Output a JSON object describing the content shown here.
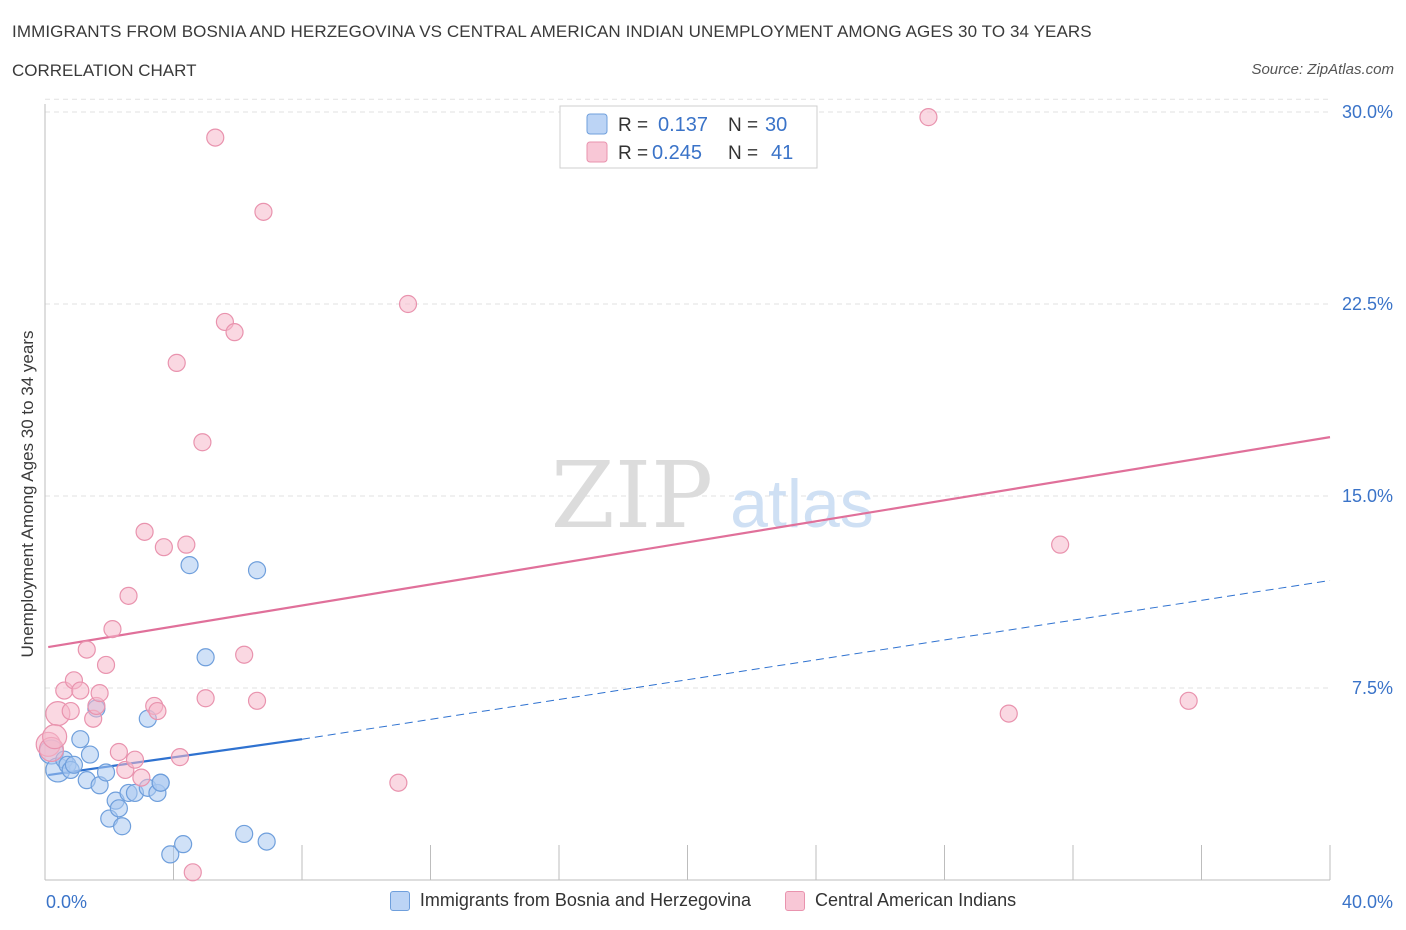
{
  "header": {
    "title": "IMMIGRANTS FROM BOSNIA AND HERZEGOVINA VS CENTRAL AMERICAN INDIAN UNEMPLOYMENT AMONG AGES 30 TO 34 YEARS",
    "subtitle": "CORRELATION CHART",
    "source": "Source: ZipAtlas.com"
  },
  "watermark": {
    "zip": "ZIP",
    "atlas": "atlas"
  },
  "legend_stats": {
    "r_label": "R =",
    "n_label": "N =",
    "rows": [
      {
        "r": "0.137",
        "n": "30"
      },
      {
        "r": "0.245",
        "n": "41"
      }
    ]
  },
  "colors": {
    "blue_fill": "#aac8f0",
    "blue_stroke": "#6f9fdc",
    "blue_line": "#2f72d0",
    "pink_fill": "#f5b8cb",
    "pink_stroke": "#e993ae",
    "pink_line": "#e0709a",
    "value_text": "#3a73c8"
  },
  "chart_data": {
    "type": "scatter",
    "title": "IMMIGRANTS FROM BOSNIA AND HERZEGOVINA VS CENTRAL AMERICAN INDIAN UNEMPLOYMENT AMONG AGES 30 TO 34 YEARS",
    "ylabel": "Unemployment Among Ages 30 to 34 years",
    "xlim": [
      0,
      40
    ],
    "ylim": [
      0,
      30.5
    ],
    "x_tick_labels": [
      "0.0%",
      "40.0%"
    ],
    "y_ticks": [
      7.5,
      15.0,
      22.5,
      30.0
    ],
    "y_tick_labels": [
      "7.5%",
      "15.0%",
      "22.5%",
      "30.0%"
    ],
    "grid": "horizontal dashed",
    "legend_placement": "top-center and bottom",
    "series": [
      {
        "name": "Immigrants from Bosnia and Herzegovina",
        "color": "blue",
        "r": 0.137,
        "n": 30,
        "trend": {
          "x0": 0.1,
          "y0": 4.1,
          "x_solid_end": 8.0,
          "y_solid_end": 5.5,
          "x1": 40.0,
          "y1": 11.7
        },
        "points": [
          [
            0.2,
            5.0
          ],
          [
            0.4,
            4.3
          ],
          [
            0.6,
            4.7
          ],
          [
            0.7,
            4.5
          ],
          [
            0.8,
            4.3
          ],
          [
            1.1,
            5.5
          ],
          [
            1.3,
            3.9
          ],
          [
            1.4,
            4.9
          ],
          [
            1.7,
            3.7
          ],
          [
            1.9,
            4.2
          ],
          [
            2.0,
            2.4
          ],
          [
            2.2,
            3.1
          ],
          [
            2.3,
            2.8
          ],
          [
            2.4,
            2.1
          ],
          [
            2.6,
            3.4
          ],
          [
            2.8,
            3.4
          ],
          [
            3.2,
            3.6
          ],
          [
            3.5,
            3.4
          ],
          [
            3.6,
            3.8
          ],
          [
            3.9,
            1.0
          ],
          [
            4.3,
            1.4
          ],
          [
            6.2,
            1.8
          ],
          [
            6.9,
            1.5
          ],
          [
            1.6,
            6.7
          ],
          [
            3.2,
            6.3
          ],
          [
            5.0,
            8.7
          ],
          [
            4.5,
            12.3
          ],
          [
            6.6,
            12.1
          ],
          [
            3.6,
            3.8
          ],
          [
            0.9,
            4.5
          ]
        ]
      },
      {
        "name": "Central American Indians",
        "color": "pink",
        "r": 0.245,
        "n": 41,
        "trend": {
          "x0": 0.1,
          "y0": 9.1,
          "x1": 40.0,
          "y1": 17.3
        },
        "points": [
          [
            0.1,
            5.3
          ],
          [
            0.2,
            5.1
          ],
          [
            0.4,
            6.5
          ],
          [
            0.6,
            7.4
          ],
          [
            0.8,
            6.6
          ],
          [
            0.9,
            7.8
          ],
          [
            1.1,
            7.4
          ],
          [
            1.3,
            9.0
          ],
          [
            1.5,
            6.3
          ],
          [
            1.6,
            6.8
          ],
          [
            1.7,
            7.3
          ],
          [
            1.9,
            8.4
          ],
          [
            2.1,
            9.8
          ],
          [
            2.3,
            5.0
          ],
          [
            2.5,
            4.3
          ],
          [
            2.6,
            11.1
          ],
          [
            2.8,
            4.7
          ],
          [
            3.0,
            4.0
          ],
          [
            3.1,
            13.6
          ],
          [
            3.4,
            6.8
          ],
          [
            3.5,
            6.6
          ],
          [
            3.7,
            13.0
          ],
          [
            4.1,
            20.2
          ],
          [
            4.2,
            4.8
          ],
          [
            4.4,
            13.1
          ],
          [
            4.6,
            0.3
          ],
          [
            4.9,
            17.1
          ],
          [
            5.0,
            7.1
          ],
          [
            5.3,
            29.0
          ],
          [
            5.6,
            21.8
          ],
          [
            5.9,
            21.4
          ],
          [
            6.2,
            8.8
          ],
          [
            6.6,
            7.0
          ],
          [
            6.8,
            26.1
          ],
          [
            11.0,
            3.8
          ],
          [
            11.3,
            22.5
          ],
          [
            27.5,
            29.8
          ],
          [
            30.0,
            6.5
          ],
          [
            31.6,
            13.1
          ],
          [
            35.6,
            7.0
          ],
          [
            0.3,
            5.6
          ]
        ]
      }
    ]
  }
}
